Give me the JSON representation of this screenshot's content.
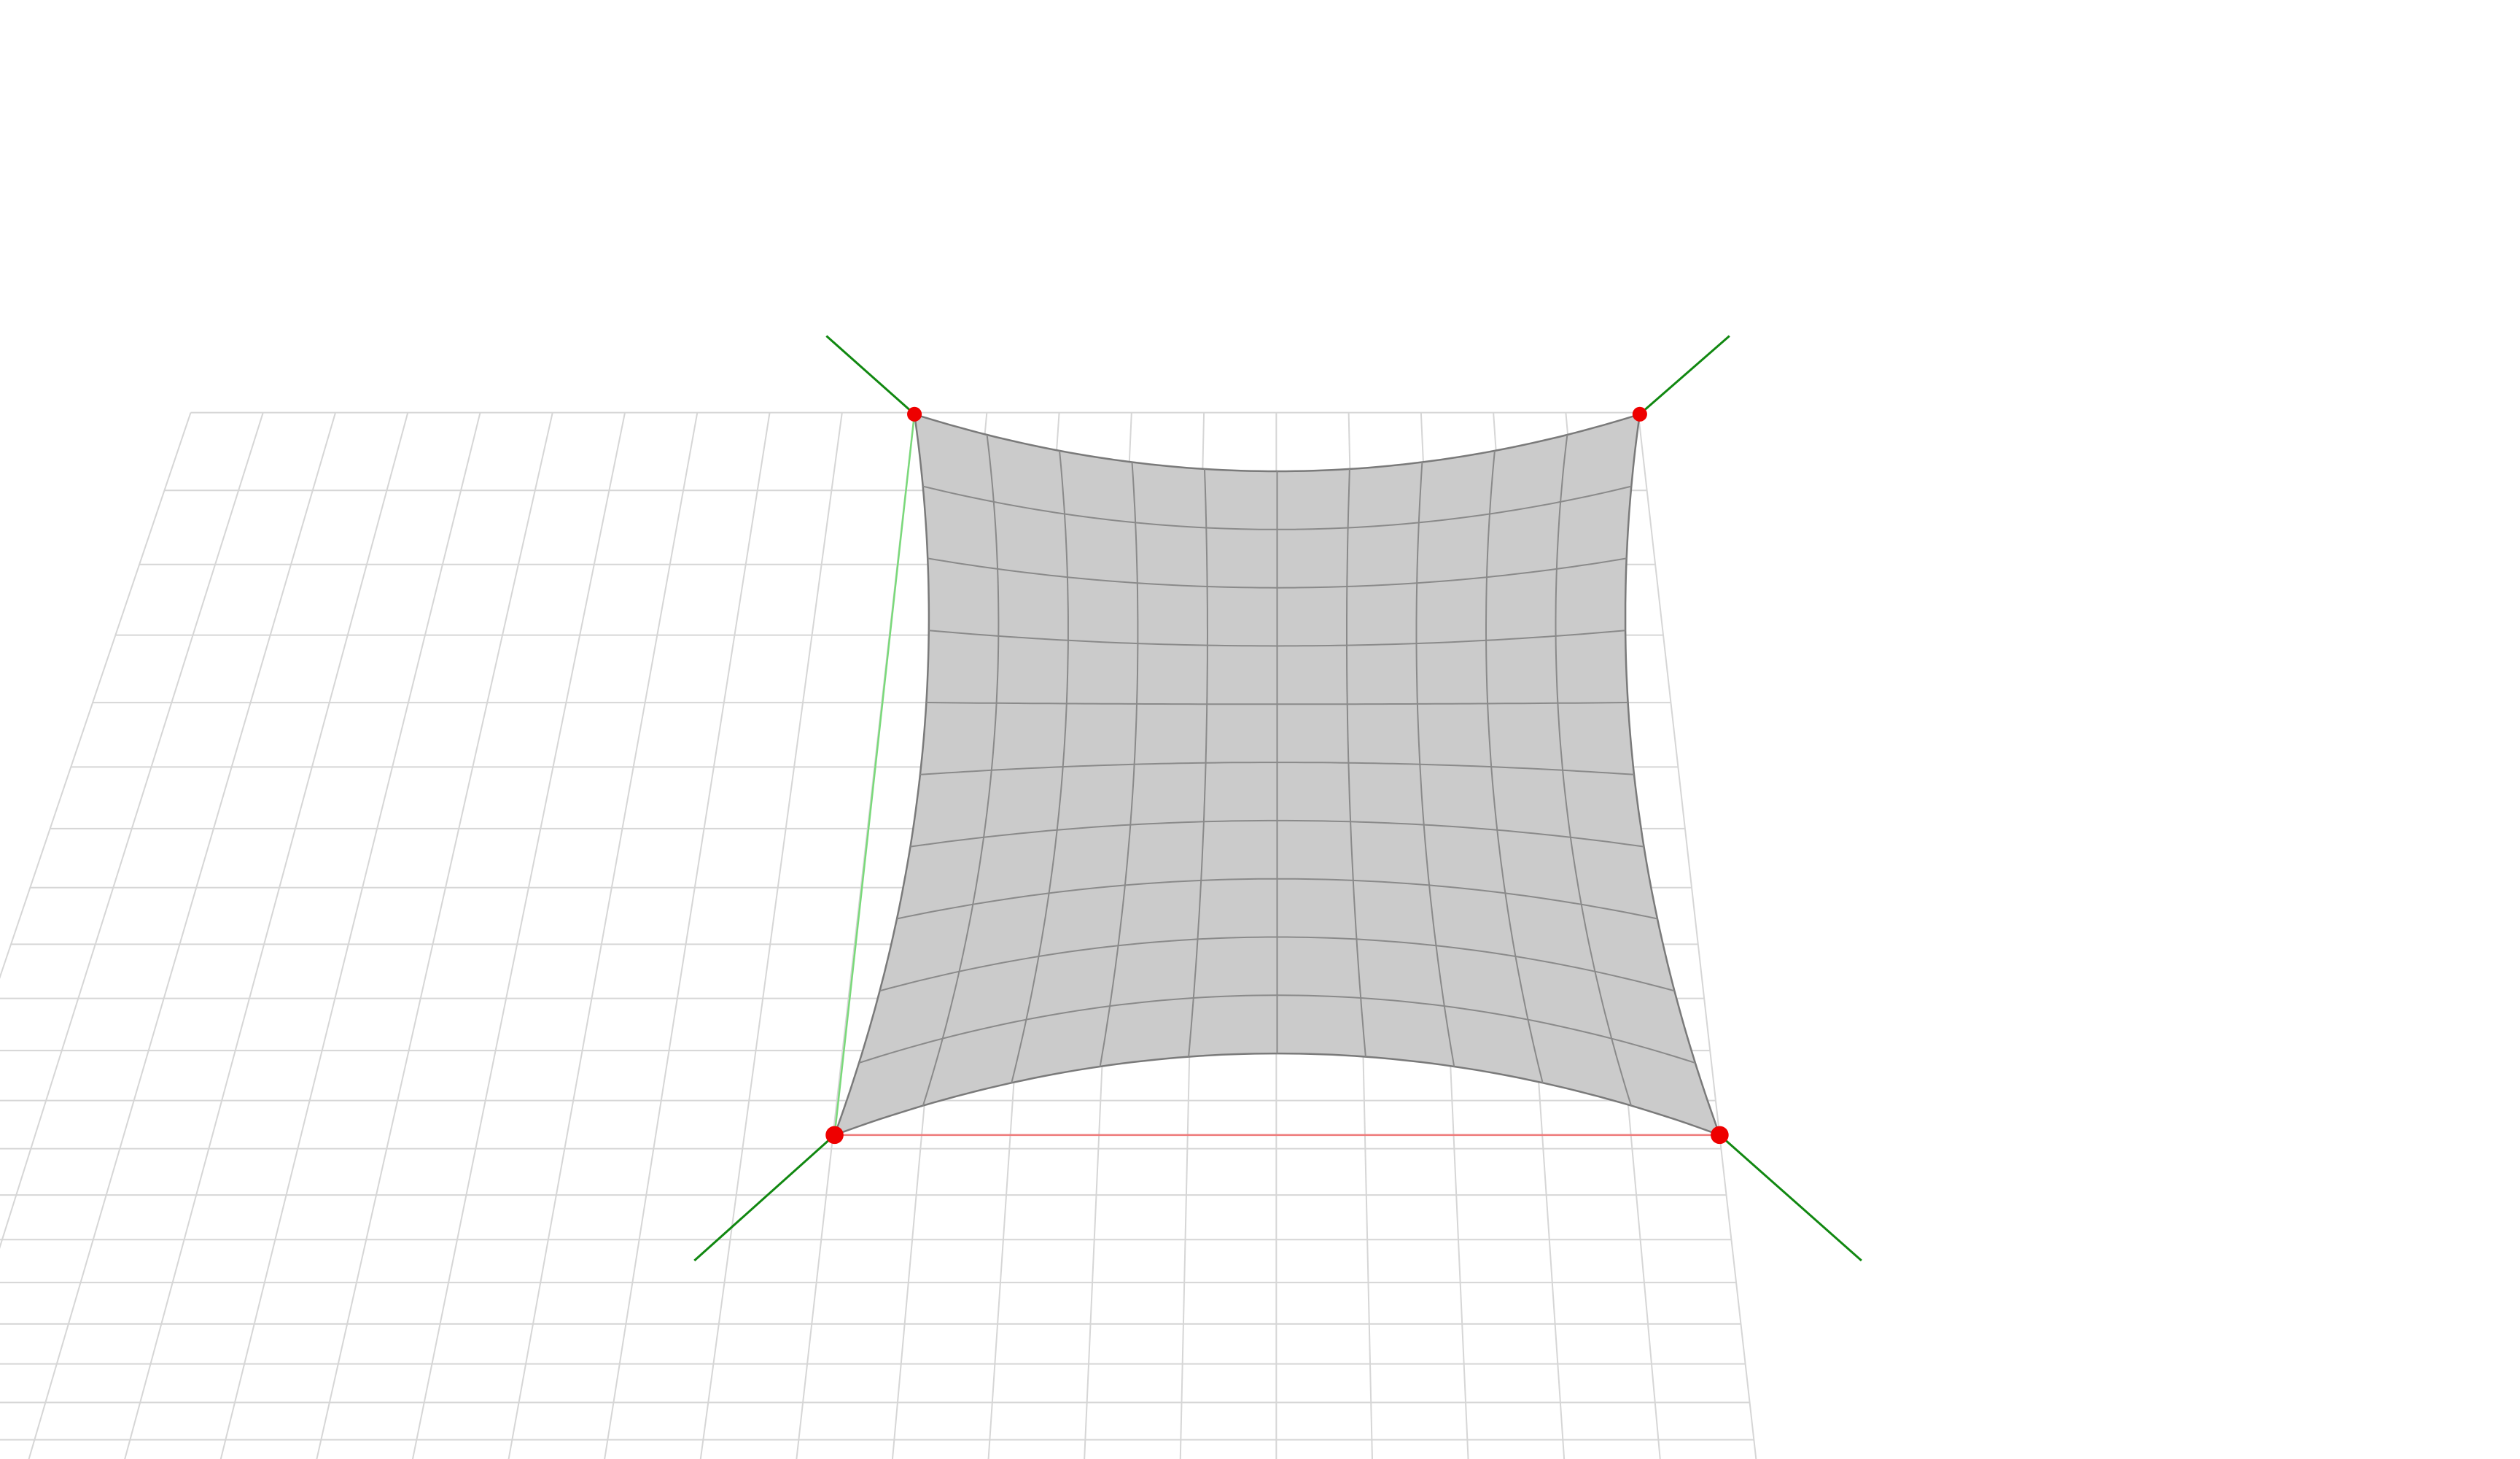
{
  "scene": {
    "description_type": "3d-viewport",
    "colors": {
      "background": "#ffffff",
      "floor_grid": "#d6d6d6",
      "surface_fill": "#cbcbcb",
      "surface_mesh": "#8a8a8a",
      "surface_outline": "#7a7a7a",
      "corner_handle": "#ee0000",
      "corner_vector": "#118811",
      "axis_x": "#ee7a7a",
      "axis_y": "#7ad97a"
    },
    "icons": {
      "corner_handle": "circle-handle-icon"
    },
    "surface": {
      "mesh_divisions_u": 10,
      "mesh_divisions_v": 10,
      "corner_count": 4
    }
  }
}
